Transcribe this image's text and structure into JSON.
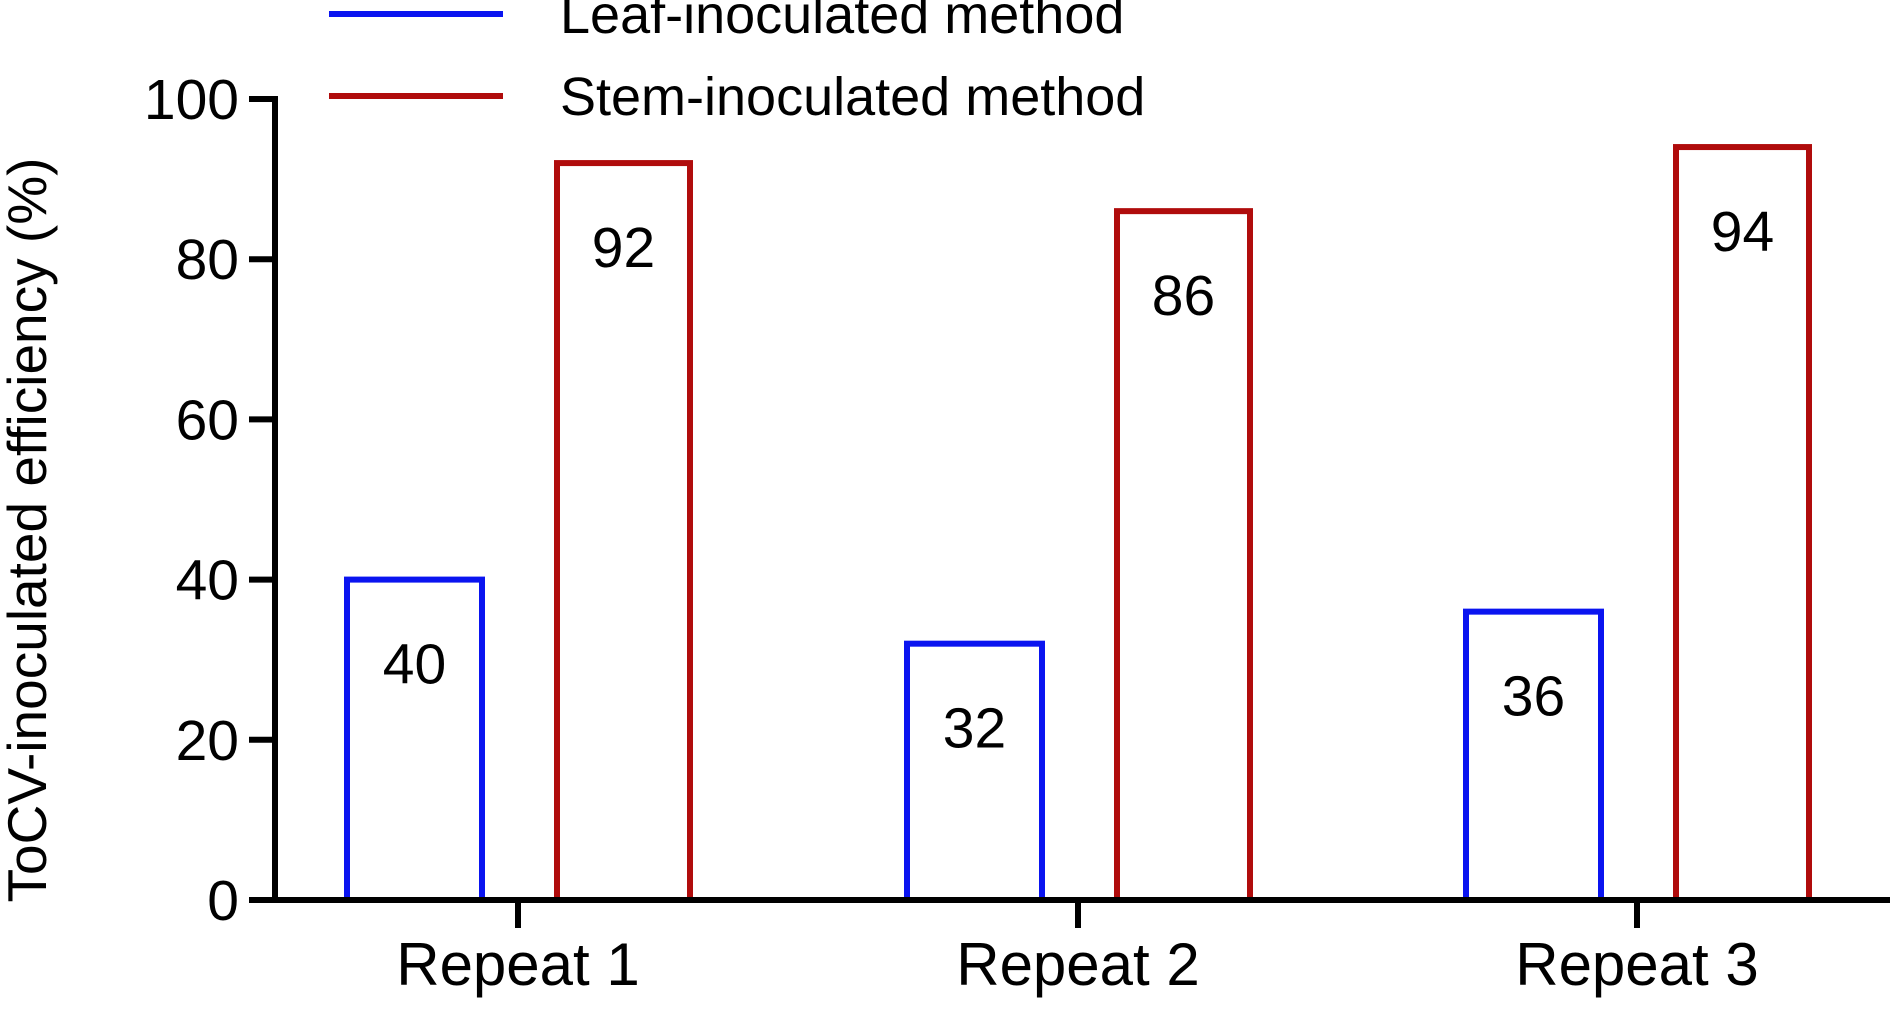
{
  "chart_data": {
    "type": "bar",
    "categories": [
      "Repeat 1",
      "Repeat 2",
      "Repeat 3"
    ],
    "series": [
      {
        "name": "Leaf-inoculated method",
        "values": [
          40,
          32,
          36
        ],
        "color": "#0a14f0"
      },
      {
        "name": "Stem-inoculated method",
        "values": [
          92,
          86,
          94
        ],
        "color": "#b00c0c"
      }
    ],
    "xlabel": "",
    "ylabel": "ToCV-inoculated efficiency (%)",
    "ylim": [
      0,
      100
    ],
    "yticks": [
      "0",
      "20",
      "40",
      "60",
      "80",
      "100"
    ],
    "grid": false,
    "legend_position": "top",
    "data_labels": true,
    "bar_style": "outlined"
  }
}
